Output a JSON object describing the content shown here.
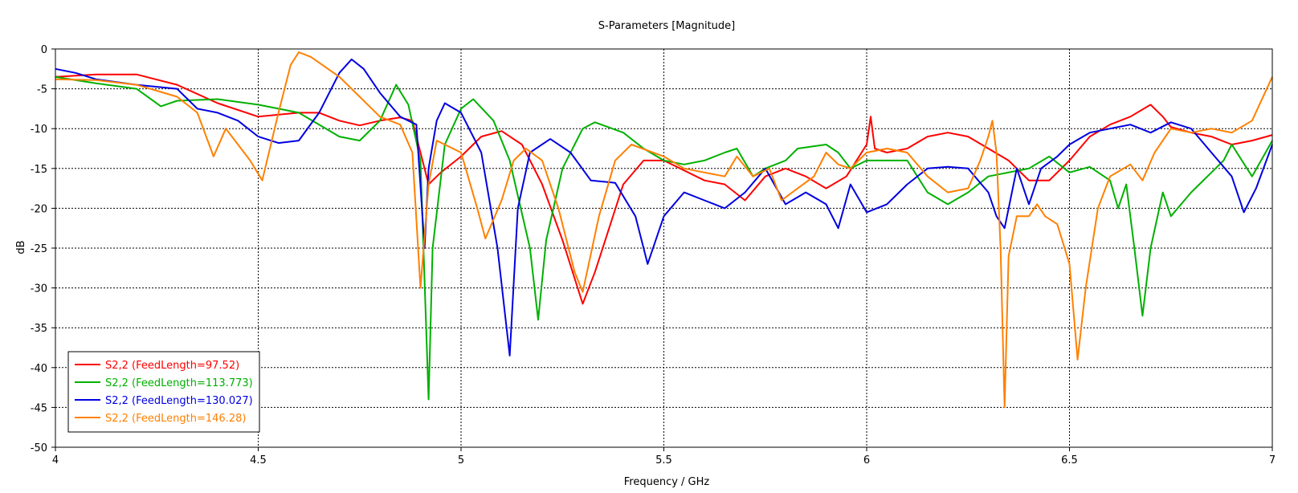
{
  "chart_data": {
    "type": "line",
    "title": "S-Parameters [Magnitude]",
    "xlabel": "Frequency / GHz",
    "ylabel": "dB",
    "xlim": [
      4,
      7
    ],
    "ylim": [
      -50,
      0
    ],
    "x_ticks": [
      "4",
      "4.5",
      "5",
      "5.5",
      "6",
      "6.5",
      "7"
    ],
    "y_ticks": [
      "0",
      "-5",
      "-10",
      "-15",
      "-20",
      "-25",
      "-30",
      "-35",
      "-40",
      "-45",
      "-50"
    ],
    "grid": true,
    "legend_position": "bottom-left",
    "series": [
      {
        "name": "S2,2 (FeedLength=97.52)",
        "color": "#ff0000",
        "points": [
          [
            4.0,
            -3.5
          ],
          [
            4.1,
            -3.2
          ],
          [
            4.2,
            -3.2
          ],
          [
            4.3,
            -4.5
          ],
          [
            4.4,
            -6.8
          ],
          [
            4.5,
            -8.5
          ],
          [
            4.6,
            -8.0
          ],
          [
            4.65,
            -8.0
          ],
          [
            4.7,
            -9.0
          ],
          [
            4.75,
            -9.6
          ],
          [
            4.8,
            -9.0
          ],
          [
            4.85,
            -8.6
          ],
          [
            4.88,
            -9.0
          ],
          [
            4.9,
            -13.0
          ],
          [
            4.92,
            -17.0
          ],
          [
            4.95,
            -15.5
          ],
          [
            5.0,
            -13.5
          ],
          [
            5.05,
            -11.0
          ],
          [
            5.1,
            -10.3
          ],
          [
            5.15,
            -12.0
          ],
          [
            5.2,
            -17.0
          ],
          [
            5.25,
            -24.0
          ],
          [
            5.3,
            -32.0
          ],
          [
            5.33,
            -28.0
          ],
          [
            5.4,
            -17.0
          ],
          [
            5.45,
            -14.0
          ],
          [
            5.5,
            -14.0
          ],
          [
            5.6,
            -16.5
          ],
          [
            5.65,
            -17.0
          ],
          [
            5.7,
            -19.0
          ],
          [
            5.75,
            -16.0
          ],
          [
            5.8,
            -15.0
          ],
          [
            5.85,
            -16.0
          ],
          [
            5.9,
            -17.5
          ],
          [
            5.95,
            -16.0
          ],
          [
            6.0,
            -12.0
          ],
          [
            6.01,
            -8.5
          ],
          [
            6.02,
            -12.5
          ],
          [
            6.05,
            -13.0
          ],
          [
            6.1,
            -12.5
          ],
          [
            6.15,
            -11.0
          ],
          [
            6.2,
            -10.5
          ],
          [
            6.25,
            -11.0
          ],
          [
            6.3,
            -12.5
          ],
          [
            6.35,
            -14.0
          ],
          [
            6.4,
            -16.5
          ],
          [
            6.45,
            -16.5
          ],
          [
            6.5,
            -14.0
          ],
          [
            6.55,
            -11.0
          ],
          [
            6.6,
            -9.5
          ],
          [
            6.65,
            -8.5
          ],
          [
            6.7,
            -7.0
          ],
          [
            6.73,
            -8.5
          ],
          [
            6.75,
            -9.8
          ],
          [
            6.8,
            -10.5
          ],
          [
            6.85,
            -11.0
          ],
          [
            6.9,
            -12.0
          ],
          [
            6.95,
            -11.5
          ],
          [
            7.0,
            -10.8
          ]
        ]
      },
      {
        "name": "S2,2 (FeedLength=113.773)",
        "color": "#00b000",
        "points": [
          [
            4.0,
            -3.5
          ],
          [
            4.1,
            -4.3
          ],
          [
            4.2,
            -5.0
          ],
          [
            4.26,
            -7.2
          ],
          [
            4.3,
            -6.5
          ],
          [
            4.4,
            -6.3
          ],
          [
            4.5,
            -7.0
          ],
          [
            4.6,
            -8.0
          ],
          [
            4.65,
            -9.5
          ],
          [
            4.7,
            -11.0
          ],
          [
            4.75,
            -11.5
          ],
          [
            4.8,
            -9.0
          ],
          [
            4.84,
            -4.5
          ],
          [
            4.87,
            -7.0
          ],
          [
            4.9,
            -14.0
          ],
          [
            4.92,
            -44.0
          ],
          [
            4.93,
            -25.0
          ],
          [
            4.96,
            -12.0
          ],
          [
            5.0,
            -7.5
          ],
          [
            5.03,
            -6.3
          ],
          [
            5.08,
            -9.0
          ],
          [
            5.12,
            -14.0
          ],
          [
            5.17,
            -25.0
          ],
          [
            5.19,
            -34.0
          ],
          [
            5.21,
            -24.0
          ],
          [
            5.25,
            -15.0
          ],
          [
            5.3,
            -10.0
          ],
          [
            5.33,
            -9.2
          ],
          [
            5.4,
            -10.5
          ],
          [
            5.45,
            -12.5
          ],
          [
            5.5,
            -14.0
          ],
          [
            5.55,
            -14.5
          ],
          [
            5.6,
            -14.0
          ],
          [
            5.65,
            -13.0
          ],
          [
            5.68,
            -12.5
          ],
          [
            5.72,
            -16.0
          ],
          [
            5.75,
            -15.0
          ],
          [
            5.8,
            -14.0
          ],
          [
            5.83,
            -12.5
          ],
          [
            5.9,
            -12.0
          ],
          [
            5.93,
            -13.0
          ],
          [
            5.96,
            -15.0
          ],
          [
            6.0,
            -14.0
          ],
          [
            6.1,
            -14.0
          ],
          [
            6.15,
            -18.0
          ],
          [
            6.2,
            -19.5
          ],
          [
            6.25,
            -18.0
          ],
          [
            6.3,
            -16.0
          ],
          [
            6.4,
            -15.0
          ],
          [
            6.45,
            -13.5
          ],
          [
            6.5,
            -15.5
          ],
          [
            6.55,
            -14.8
          ],
          [
            6.6,
            -16.5
          ],
          [
            6.62,
            -20.0
          ],
          [
            6.64,
            -17.0
          ],
          [
            6.66,
            -25.0
          ],
          [
            6.68,
            -33.5
          ],
          [
            6.7,
            -25.0
          ],
          [
            6.73,
            -18.0
          ],
          [
            6.75,
            -21.0
          ],
          [
            6.8,
            -18.0
          ],
          [
            6.85,
            -15.5
          ],
          [
            6.88,
            -14.0
          ],
          [
            6.9,
            -12.0
          ],
          [
            6.95,
            -16.0
          ],
          [
            7.0,
            -11.5
          ]
        ]
      },
      {
        "name": "S2,2 (FeedLength=130.027)",
        "color": "#0000e0",
        "points": [
          [
            4.0,
            -2.5
          ],
          [
            4.05,
            -3.0
          ],
          [
            4.1,
            -3.8
          ],
          [
            4.2,
            -4.5
          ],
          [
            4.3,
            -5.0
          ],
          [
            4.35,
            -7.5
          ],
          [
            4.4,
            -8.0
          ],
          [
            4.45,
            -9.0
          ],
          [
            4.5,
            -11.0
          ],
          [
            4.55,
            -11.8
          ],
          [
            4.6,
            -11.5
          ],
          [
            4.65,
            -8.0
          ],
          [
            4.7,
            -3.0
          ],
          [
            4.73,
            -1.3
          ],
          [
            4.76,
            -2.5
          ],
          [
            4.8,
            -5.5
          ],
          [
            4.85,
            -8.5
          ],
          [
            4.89,
            -9.5
          ],
          [
            4.91,
            -25.0
          ],
          [
            4.92,
            -15.0
          ],
          [
            4.94,
            -9.0
          ],
          [
            4.96,
            -6.8
          ],
          [
            5.0,
            -8.0
          ],
          [
            5.05,
            -13.0
          ],
          [
            5.09,
            -25.0
          ],
          [
            5.12,
            -38.5
          ],
          [
            5.14,
            -20.0
          ],
          [
            5.17,
            -13.0
          ],
          [
            5.22,
            -11.3
          ],
          [
            5.27,
            -13.0
          ],
          [
            5.32,
            -16.5
          ],
          [
            5.38,
            -16.8
          ],
          [
            5.43,
            -21.0
          ],
          [
            5.46,
            -27.0
          ],
          [
            5.5,
            -21.0
          ],
          [
            5.55,
            -18.0
          ],
          [
            5.6,
            -19.0
          ],
          [
            5.65,
            -20.0
          ],
          [
            5.7,
            -18.0
          ],
          [
            5.75,
            -15.0
          ],
          [
            5.8,
            -19.5
          ],
          [
            5.85,
            -18.0
          ],
          [
            5.9,
            -19.5
          ],
          [
            5.93,
            -22.5
          ],
          [
            5.96,
            -17.0
          ],
          [
            6.0,
            -20.5
          ],
          [
            6.05,
            -19.5
          ],
          [
            6.1,
            -17.0
          ],
          [
            6.15,
            -15.0
          ],
          [
            6.2,
            -14.8
          ],
          [
            6.25,
            -15.0
          ],
          [
            6.3,
            -18.0
          ],
          [
            6.32,
            -21.0
          ],
          [
            6.34,
            -22.5
          ],
          [
            6.37,
            -15.0
          ],
          [
            6.4,
            -19.5
          ],
          [
            6.43,
            -15.0
          ],
          [
            6.47,
            -13.5
          ],
          [
            6.5,
            -12.0
          ],
          [
            6.55,
            -10.5
          ],
          [
            6.6,
            -10.0
          ],
          [
            6.65,
            -9.5
          ],
          [
            6.7,
            -10.5
          ],
          [
            6.75,
            -9.2
          ],
          [
            6.8,
            -10.0
          ],
          [
            6.85,
            -13.0
          ],
          [
            6.9,
            -16.0
          ],
          [
            6.93,
            -20.5
          ],
          [
            6.96,
            -17.5
          ],
          [
            7.0,
            -12.0
          ]
        ]
      },
      {
        "name": "S2,2 (FeedLength=146.28)",
        "color": "#ff8000",
        "points": [
          [
            4.0,
            -3.8
          ],
          [
            4.1,
            -3.9
          ],
          [
            4.2,
            -4.5
          ],
          [
            4.3,
            -6.0
          ],
          [
            4.35,
            -8.0
          ],
          [
            4.39,
            -13.5
          ],
          [
            4.42,
            -10.0
          ],
          [
            4.45,
            -12.0
          ],
          [
            4.48,
            -14.0
          ],
          [
            4.51,
            -16.5
          ],
          [
            4.55,
            -8.0
          ],
          [
            4.58,
            -2.0
          ],
          [
            4.6,
            -0.4
          ],
          [
            4.63,
            -1.0
          ],
          [
            4.7,
            -3.5
          ],
          [
            4.75,
            -6.0
          ],
          [
            4.8,
            -8.5
          ],
          [
            4.85,
            -9.5
          ],
          [
            4.88,
            -13.0
          ],
          [
            4.9,
            -30.0
          ],
          [
            4.92,
            -17.0
          ],
          [
            4.94,
            -11.5
          ],
          [
            5.0,
            -13.0
          ],
          [
            5.04,
            -20.0
          ],
          [
            5.06,
            -23.8
          ],
          [
            5.1,
            -19.0
          ],
          [
            5.13,
            -14.0
          ],
          [
            5.16,
            -12.5
          ],
          [
            5.2,
            -14.0
          ],
          [
            5.24,
            -20.0
          ],
          [
            5.28,
            -28.0
          ],
          [
            5.3,
            -30.5
          ],
          [
            5.34,
            -21.0
          ],
          [
            5.38,
            -14.0
          ],
          [
            5.42,
            -12.0
          ],
          [
            5.5,
            -13.5
          ],
          [
            5.55,
            -15.0
          ],
          [
            5.6,
            -15.5
          ],
          [
            5.65,
            -16.0
          ],
          [
            5.68,
            -13.5
          ],
          [
            5.72,
            -16.0
          ],
          [
            5.76,
            -15.0
          ],
          [
            5.79,
            -19.0
          ],
          [
            5.83,
            -17.5
          ],
          [
            5.87,
            -16.0
          ],
          [
            5.9,
            -13.0
          ],
          [
            5.93,
            -14.5
          ],
          [
            5.96,
            -15.0
          ],
          [
            6.0,
            -13.0
          ],
          [
            6.05,
            -12.5
          ],
          [
            6.1,
            -13.0
          ],
          [
            6.15,
            -16.0
          ],
          [
            6.2,
            -18.0
          ],
          [
            6.25,
            -17.5
          ],
          [
            6.28,
            -14.0
          ],
          [
            6.3,
            -11.0
          ],
          [
            6.31,
            -9.0
          ],
          [
            6.32,
            -13.0
          ],
          [
            6.33,
            -25.0
          ],
          [
            6.34,
            -45.0
          ],
          [
            6.35,
            -26.0
          ],
          [
            6.37,
            -21.0
          ],
          [
            6.4,
            -21.0
          ],
          [
            6.42,
            -19.5
          ],
          [
            6.44,
            -21.0
          ],
          [
            6.47,
            -22.0
          ],
          [
            6.5,
            -27.0
          ],
          [
            6.52,
            -39.0
          ],
          [
            6.54,
            -30.0
          ],
          [
            6.57,
            -20.0
          ],
          [
            6.6,
            -16.0
          ],
          [
            6.65,
            -14.5
          ],
          [
            6.68,
            -16.5
          ],
          [
            6.71,
            -13.0
          ],
          [
            6.75,
            -10.0
          ],
          [
            6.8,
            -10.5
          ],
          [
            6.85,
            -10.0
          ],
          [
            6.9,
            -10.5
          ],
          [
            6.95,
            -9.0
          ],
          [
            7.0,
            -3.5
          ]
        ]
      }
    ]
  }
}
